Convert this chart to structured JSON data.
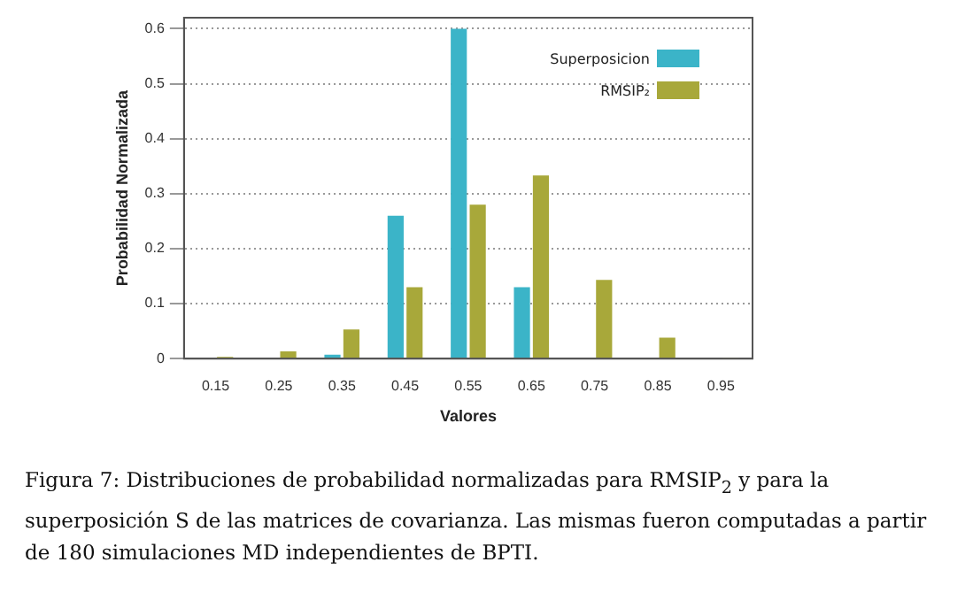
{
  "chart_data": {
    "type": "bar",
    "xlabel": "Valores",
    "ylabel": "Probabilidad Normalizada",
    "categories": [
      "0.15",
      "0.25",
      "0.35",
      "0.45",
      "0.55",
      "0.65",
      "0.75",
      "0.85",
      "0.95"
    ],
    "series": [
      {
        "name": "Superposicion",
        "color": "#3bb4c8",
        "values": [
          0,
          0,
          0.007,
          0.26,
          0.6,
          0.13,
          0,
          0,
          0
        ]
      },
      {
        "name": "RMSIP₂",
        "color": "#a8a83a",
        "values": [
          0.003,
          0.013,
          0.053,
          0.13,
          0.28,
          0.333,
          0.143,
          0.038,
          0.002
        ]
      }
    ],
    "ylim": [
      0,
      0.62
    ],
    "yticks": [
      0,
      0.1,
      0.2,
      0.3,
      0.4,
      0.5,
      0.6
    ],
    "grid": true,
    "legend": "top right",
    "annotations": [
      "Figura 7: Distribuciones de probabilidad normalizadas para RMSIP$_{2}$ y para la superposición S de las matrices de covarianza. Las mismas fueron computadas a partir de 180 simulaciones MD independientes de BPTI."
    ]
  }
}
